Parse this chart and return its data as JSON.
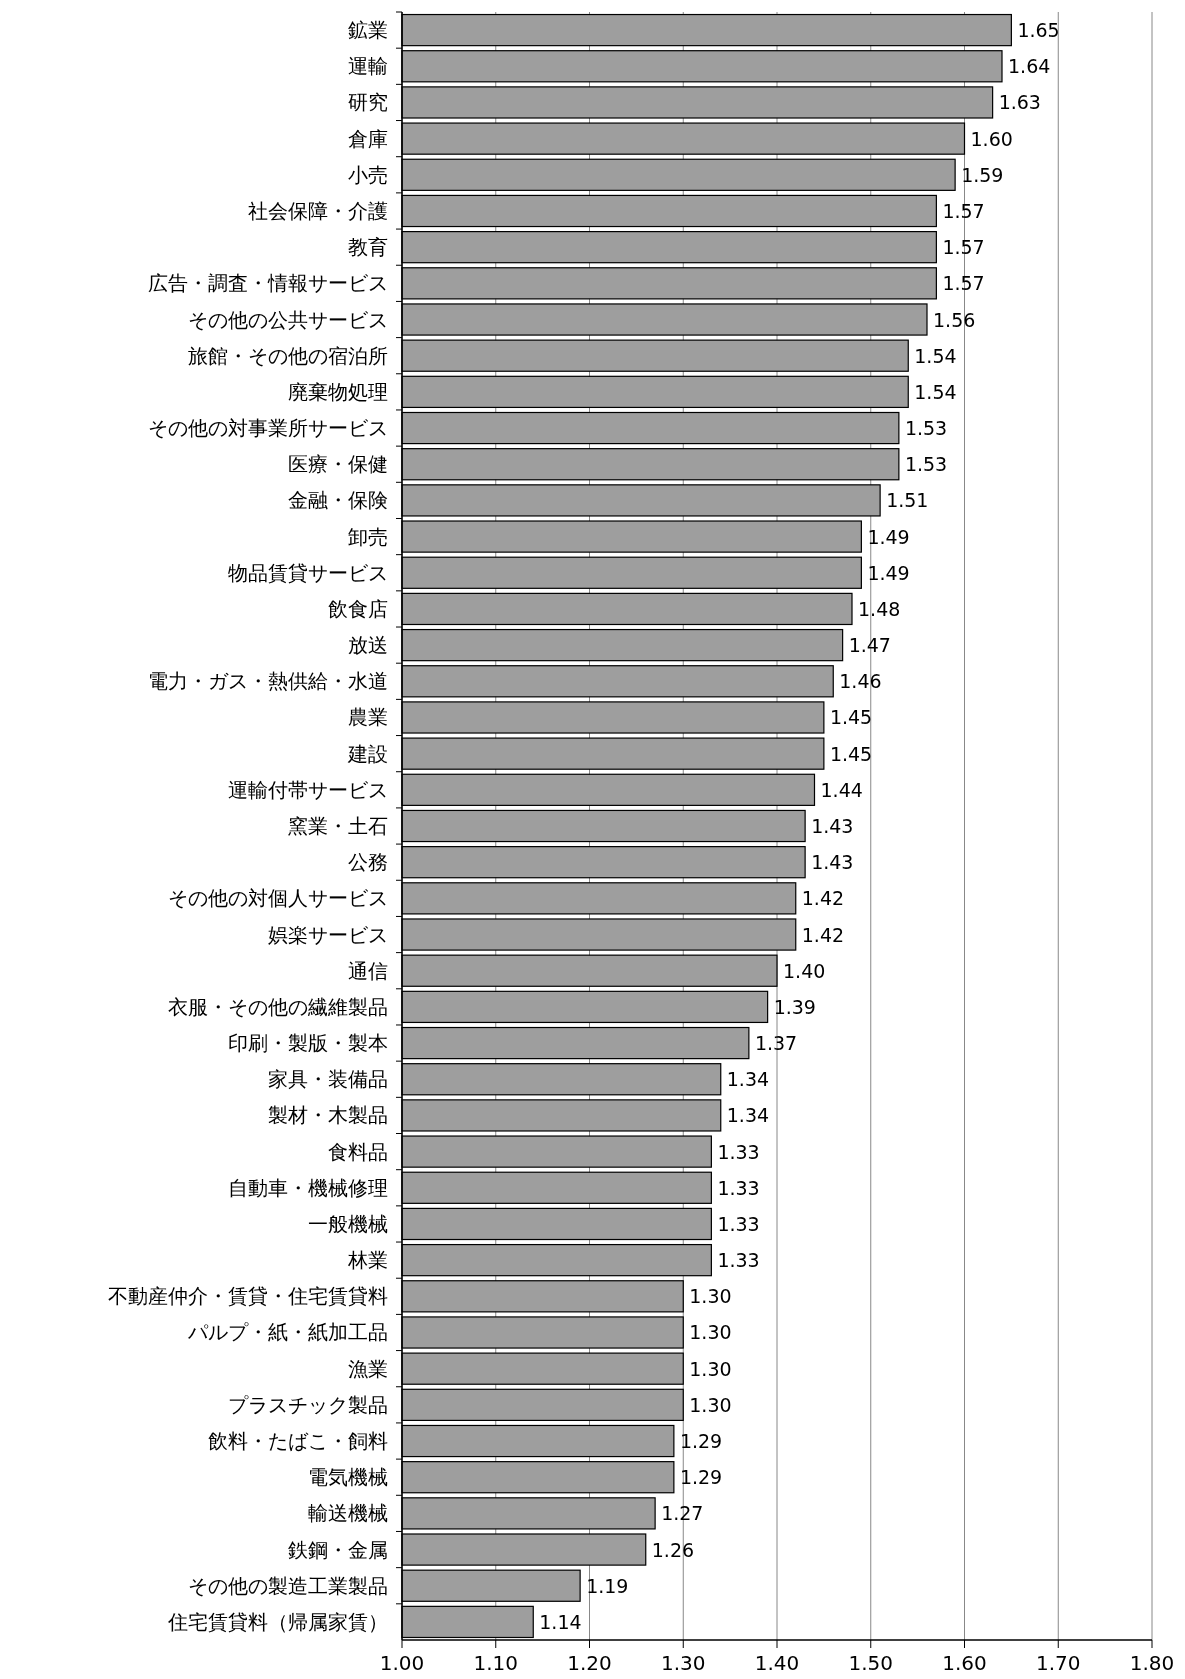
{
  "chart_data": {
    "type": "bar",
    "orientation": "horizontal",
    "categories": [
      "鉱業",
      "運輸",
      "研究",
      "倉庫",
      "小売",
      "社会保障・介護",
      "教育",
      "広告・調査・情報サービス",
      "その他の公共サービス",
      "旅館・その他の宿泊所",
      "廃棄物処理",
      "その他の対事業所サービス",
      "医療・保健",
      "金融・保険",
      "卸売",
      "物品賃貸サービス",
      "飲食店",
      "放送",
      "電力・ガス・熱供給・水道",
      "農業",
      "建設",
      "運輸付帯サービス",
      "窯業・土石",
      "公務",
      "その他の対個人サービス",
      "娯楽サービス",
      "通信",
      "衣服・その他の繊維製品",
      "印刷・製版・製本",
      "家具・装備品",
      "製材・木製品",
      "食料品",
      "自動車・機械修理",
      "一般機械",
      "林業",
      "不動産仲介・賃貸・住宅賃貸料",
      "パルプ・紙・紙加工品",
      "漁業",
      "プラスチック製品",
      "飲料・たばこ・飼料",
      "電気機械",
      "輸送機械",
      "鉄鋼・金属",
      "その他の製造工業製品",
      "住宅賃貸料（帰属家賃）"
    ],
    "values": [
      1.65,
      1.64,
      1.63,
      1.6,
      1.59,
      1.57,
      1.57,
      1.57,
      1.56,
      1.54,
      1.54,
      1.53,
      1.53,
      1.51,
      1.49,
      1.49,
      1.48,
      1.47,
      1.46,
      1.45,
      1.45,
      1.44,
      1.43,
      1.43,
      1.42,
      1.42,
      1.4,
      1.39,
      1.37,
      1.34,
      1.34,
      1.33,
      1.33,
      1.33,
      1.33,
      1.3,
      1.3,
      1.3,
      1.3,
      1.29,
      1.29,
      1.27,
      1.26,
      1.19,
      1.14
    ],
    "value_labels": [
      "1.65",
      "1.64",
      "1.63",
      "1.60",
      "1.59",
      "1.57",
      "1.57",
      "1.57",
      "1.56",
      "1.54",
      "1.54",
      "1.53",
      "1.53",
      "1.51",
      "1.49",
      "1.49",
      "1.48",
      "1.47",
      "1.46",
      "1.45",
      "1.45",
      "1.44",
      "1.43",
      "1.43",
      "1.42",
      "1.42",
      "1.40",
      "1.39",
      "1.37",
      "1.34",
      "1.34",
      "1.33",
      "1.33",
      "1.33",
      "1.33",
      "1.30",
      "1.30",
      "1.30",
      "1.30",
      "1.29",
      "1.29",
      "1.27",
      "1.26",
      "1.19",
      "1.14"
    ],
    "color": "#9e9e9e",
    "xlim": [
      1.0,
      1.8
    ],
    "xticks": [
      {
        "value": 1.0,
        "label": "1.00"
      },
      {
        "value": 1.1,
        "label": "1.10"
      },
      {
        "value": 1.2,
        "label": "1.20"
      },
      {
        "value": 1.3,
        "label": "1.30"
      },
      {
        "value": 1.4,
        "label": "1.40"
      },
      {
        "value": 1.5,
        "label": "1.50"
      },
      {
        "value": 1.6,
        "label": "1.60"
      },
      {
        "value": 1.7,
        "label": "1.70"
      },
      {
        "value": 1.8,
        "label": "1.80"
      }
    ],
    "grid": "x"
  }
}
